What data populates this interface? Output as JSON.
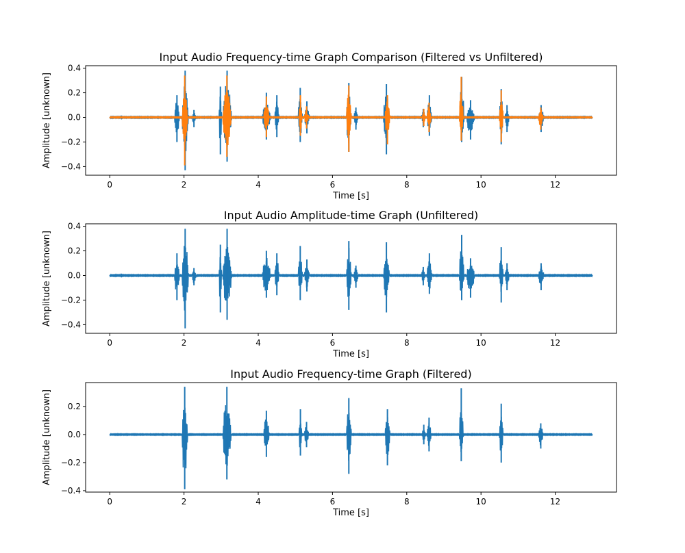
{
  "colors": {
    "blue": "#1f77b4",
    "orange": "#ff7f0e"
  },
  "chart_data": [
    {
      "type": "line",
      "title": "Input Audio Frequency-time Graph Comparison (Filtered vs Unfiltered)",
      "xlabel": "Time [s]",
      "ylabel": "Amplitude [unknown]",
      "xlim": [
        -0.65,
        13.65
      ],
      "ylim": [
        -0.47,
        0.42
      ],
      "xticks": [
        0,
        2,
        4,
        6,
        8,
        10,
        12
      ],
      "yticks": [
        -0.4,
        -0.2,
        0.0,
        0.2,
        0.4
      ],
      "ytick_labels": [
        "−0.4",
        "−0.2",
        "0.0",
        "0.2",
        "0.4"
      ],
      "grid": false,
      "duration": 13.0,
      "series": [
        {
          "color": "#1f77b4",
          "noise": 0.004,
          "bursts": [
            {
              "t0": 0.3,
              "t1": 0.34,
              "max": 0.015,
              "min": -0.015
            },
            {
              "t0": 1.75,
              "t1": 1.95,
              "max": 0.18,
              "min": -0.2
            },
            {
              "t0": 1.95,
              "t1": 2.22,
              "max": 0.38,
              "min": -0.43
            },
            {
              "t0": 2.22,
              "t1": 2.38,
              "max": 0.06,
              "min": -0.08
            },
            {
              "t0": 2.95,
              "t1": 3.05,
              "max": 0.25,
              "min": -0.3
            },
            {
              "t0": 3.05,
              "t1": 3.42,
              "max": 0.38,
              "min": -0.36
            },
            {
              "t0": 4.12,
              "t1": 4.45,
              "max": 0.2,
              "min": -0.18
            },
            {
              "t0": 4.45,
              "t1": 4.62,
              "max": 0.18,
              "min": -0.16
            },
            {
              "t0": 5.08,
              "t1": 5.25,
              "max": 0.24,
              "min": -0.2
            },
            {
              "t0": 5.25,
              "t1": 5.45,
              "max": 0.13,
              "min": -0.13
            },
            {
              "t0": 6.38,
              "t1": 6.58,
              "max": 0.28,
              "min": -0.28
            },
            {
              "t0": 6.58,
              "t1": 6.75,
              "max": 0.08,
              "min": -0.1
            },
            {
              "t0": 7.38,
              "t1": 7.62,
              "max": 0.27,
              "min": -0.3
            },
            {
              "t0": 8.4,
              "t1": 8.55,
              "max": 0.07,
              "min": -0.08
            },
            {
              "t0": 8.55,
              "t1": 8.75,
              "max": 0.18,
              "min": -0.15
            },
            {
              "t0": 9.42,
              "t1": 9.62,
              "max": 0.33,
              "min": -0.2
            },
            {
              "t0": 9.62,
              "t1": 9.95,
              "max": 0.14,
              "min": -0.18
            },
            {
              "t0": 10.5,
              "t1": 10.65,
              "max": 0.23,
              "min": -0.22
            },
            {
              "t0": 10.65,
              "t1": 10.82,
              "max": 0.1,
              "min": -0.12
            },
            {
              "t0": 11.55,
              "t1": 11.78,
              "max": 0.1,
              "min": -0.12
            }
          ]
        },
        {
          "color": "#ff7f0e",
          "noise": 0.003,
          "bursts": [
            {
              "t0": 1.95,
              "t1": 2.18,
              "max": 0.34,
              "min": -0.39
            },
            {
              "t0": 3.05,
              "t1": 3.4,
              "max": 0.34,
              "min": -0.32
            },
            {
              "t0": 4.15,
              "t1": 4.38,
              "max": 0.17,
              "min": -0.16
            },
            {
              "t0": 5.1,
              "t1": 5.22,
              "max": 0.18,
              "min": -0.15
            },
            {
              "t0": 5.25,
              "t1": 5.42,
              "max": 0.09,
              "min": -0.09
            },
            {
              "t0": 6.38,
              "t1": 6.58,
              "max": 0.26,
              "min": -0.28
            },
            {
              "t0": 7.42,
              "t1": 7.62,
              "max": 0.18,
              "min": -0.22
            },
            {
              "t0": 8.42,
              "t1": 8.55,
              "max": 0.07,
              "min": -0.07
            },
            {
              "t0": 8.55,
              "t1": 8.72,
              "max": 0.12,
              "min": -0.12
            },
            {
              "t0": 9.42,
              "t1": 9.58,
              "max": 0.33,
              "min": -0.19
            },
            {
              "t0": 10.5,
              "t1": 10.65,
              "max": 0.22,
              "min": -0.2
            },
            {
              "t0": 11.55,
              "t1": 11.75,
              "max": 0.08,
              "min": -0.1
            }
          ]
        }
      ]
    },
    {
      "type": "line",
      "title": "Input Audio Amplitude-time Graph (Unfiltered)",
      "xlabel": "Time [s]",
      "ylabel": "Amplitude [unknown]",
      "xlim": [
        -0.65,
        13.65
      ],
      "ylim": [
        -0.47,
        0.42
      ],
      "xticks": [
        0,
        2,
        4,
        6,
        8,
        10,
        12
      ],
      "yticks": [
        -0.4,
        -0.2,
        0.0,
        0.2,
        0.4
      ],
      "ytick_labels": [
        "−0.4",
        "−0.2",
        "0.0",
        "0.2",
        "0.4"
      ],
      "grid": false,
      "duration": 13.0,
      "series": [
        {
          "color": "#1f77b4",
          "noise": 0.004,
          "bursts": [
            {
              "t0": 0.3,
              "t1": 0.34,
              "max": 0.015,
              "min": -0.015
            },
            {
              "t0": 1.75,
              "t1": 1.95,
              "max": 0.18,
              "min": -0.2
            },
            {
              "t0": 1.95,
              "t1": 2.22,
              "max": 0.38,
              "min": -0.43
            },
            {
              "t0": 2.22,
              "t1": 2.38,
              "max": 0.06,
              "min": -0.08
            },
            {
              "t0": 2.95,
              "t1": 3.05,
              "max": 0.25,
              "min": -0.3
            },
            {
              "t0": 3.05,
              "t1": 3.42,
              "max": 0.38,
              "min": -0.36
            },
            {
              "t0": 4.12,
              "t1": 4.45,
              "max": 0.2,
              "min": -0.18
            },
            {
              "t0": 4.45,
              "t1": 4.62,
              "max": 0.18,
              "min": -0.16
            },
            {
              "t0": 5.08,
              "t1": 5.25,
              "max": 0.24,
              "min": -0.2
            },
            {
              "t0": 5.25,
              "t1": 5.45,
              "max": 0.13,
              "min": -0.13
            },
            {
              "t0": 6.38,
              "t1": 6.58,
              "max": 0.28,
              "min": -0.28
            },
            {
              "t0": 6.58,
              "t1": 6.75,
              "max": 0.08,
              "min": -0.1
            },
            {
              "t0": 7.38,
              "t1": 7.62,
              "max": 0.27,
              "min": -0.3
            },
            {
              "t0": 8.4,
              "t1": 8.55,
              "max": 0.07,
              "min": -0.08
            },
            {
              "t0": 8.55,
              "t1": 8.75,
              "max": 0.18,
              "min": -0.15
            },
            {
              "t0": 9.42,
              "t1": 9.62,
              "max": 0.33,
              "min": -0.2
            },
            {
              "t0": 9.62,
              "t1": 9.95,
              "max": 0.14,
              "min": -0.18
            },
            {
              "t0": 10.5,
              "t1": 10.65,
              "max": 0.23,
              "min": -0.22
            },
            {
              "t0": 10.65,
              "t1": 10.82,
              "max": 0.1,
              "min": -0.12
            },
            {
              "t0": 11.55,
              "t1": 11.78,
              "max": 0.1,
              "min": -0.12
            }
          ]
        }
      ]
    },
    {
      "type": "line",
      "title": "Input Audio Frequency-time Graph (Filtered)",
      "xlabel": "Time [s]",
      "ylabel": "Amplitude [unknown]",
      "xlim": [
        -0.65,
        13.65
      ],
      "ylim": [
        -0.41,
        0.37
      ],
      "xticks": [
        0,
        2,
        4,
        6,
        8,
        10,
        12
      ],
      "yticks": [
        -0.4,
        -0.2,
        0.0,
        0.2
      ],
      "ytick_labels": [
        "−0.4",
        "−0.2",
        "0.0",
        "0.2"
      ],
      "grid": false,
      "duration": 13.0,
      "series": [
        {
          "color": "#1f77b4",
          "noise": 0.003,
          "bursts": [
            {
              "t0": 1.95,
              "t1": 2.18,
              "max": 0.34,
              "min": -0.39
            },
            {
              "t0": 3.05,
              "t1": 3.4,
              "max": 0.34,
              "min": -0.32
            },
            {
              "t0": 4.15,
              "t1": 4.38,
              "max": 0.17,
              "min": -0.16
            },
            {
              "t0": 5.1,
              "t1": 5.22,
              "max": 0.18,
              "min": -0.15
            },
            {
              "t0": 5.25,
              "t1": 5.42,
              "max": 0.09,
              "min": -0.09
            },
            {
              "t0": 6.38,
              "t1": 6.58,
              "max": 0.26,
              "min": -0.28
            },
            {
              "t0": 7.42,
              "t1": 7.62,
              "max": 0.18,
              "min": -0.22
            },
            {
              "t0": 8.42,
              "t1": 8.55,
              "max": 0.07,
              "min": -0.07
            },
            {
              "t0": 8.55,
              "t1": 8.72,
              "max": 0.12,
              "min": -0.12
            },
            {
              "t0": 9.42,
              "t1": 9.58,
              "max": 0.33,
              "min": -0.19
            },
            {
              "t0": 10.5,
              "t1": 10.65,
              "max": 0.22,
              "min": -0.2
            },
            {
              "t0": 11.55,
              "t1": 11.75,
              "max": 0.08,
              "min": -0.1
            }
          ]
        }
      ]
    }
  ]
}
